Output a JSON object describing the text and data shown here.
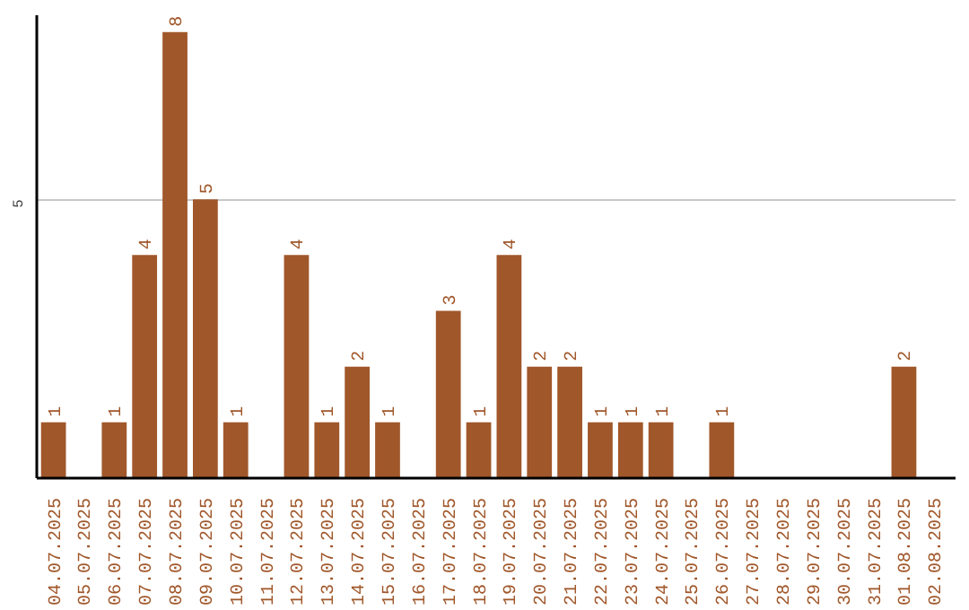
{
  "chart_data": {
    "type": "bar",
    "categories": [
      "04.07.2025",
      "05.07.2025",
      "06.07.2025",
      "07.07.2025",
      "08.07.2025",
      "09.07.2025",
      "10.07.2025",
      "11.07.2025",
      "12.07.2025",
      "13.07.2025",
      "14.07.2025",
      "15.07.2025",
      "16.07.2025",
      "17.07.2025",
      "18.07.2025",
      "19.07.2025",
      "20.07.2025",
      "21.07.2025",
      "22.07.2025",
      "23.07.2025",
      "24.07.2025",
      "25.07.2025",
      "26.07.2025",
      "27.07.2025",
      "28.07.2025",
      "29.07.2025",
      "30.07.2025",
      "31.07.2025",
      "01.08.2025",
      "02.08.2025"
    ],
    "values": [
      1,
      0,
      1,
      4,
      8,
      5,
      1,
      0,
      4,
      1,
      2,
      1,
      0,
      3,
      1,
      4,
      2,
      2,
      1,
      1,
      1,
      0,
      1,
      0,
      0,
      0,
      0,
      0,
      2,
      0
    ],
    "value_labels": [
      "1",
      null,
      "1",
      "4",
      "8",
      "5",
      "1",
      null,
      "4",
      "1",
      "2",
      "1",
      null,
      "3",
      "1",
      "4",
      "2",
      "2",
      "1",
      "1",
      "1",
      null,
      "1",
      null,
      null,
      null,
      null,
      null,
      "2",
      null
    ],
    "color": "#a0572a",
    "ylim": [
      0,
      8.3
    ],
    "yticks": [
      5
    ],
    "grid": "y"
  }
}
